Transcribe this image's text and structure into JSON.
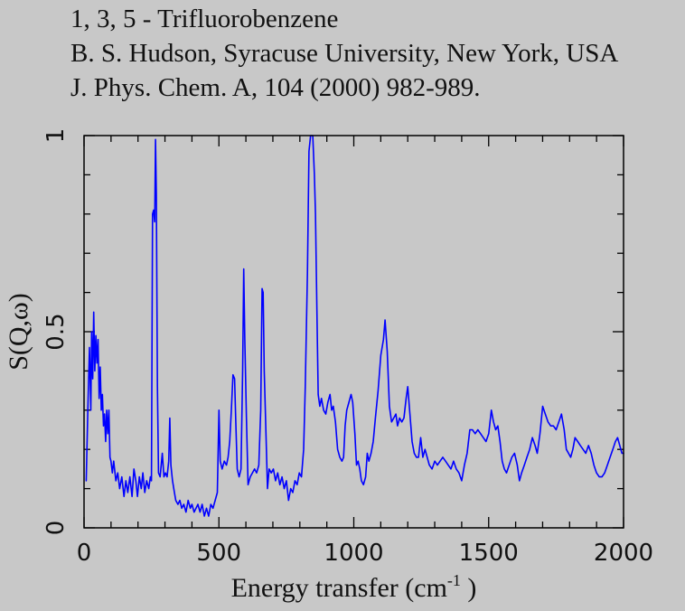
{
  "header": {
    "line1": "1, 3, 5 - Trifluorobenzene",
    "line2": "B. S. Hudson, Syracuse University, New York, USA",
    "line3": "J. Phys. Chem. A, 104 (2000) 982-989."
  },
  "colors": {
    "line": "#0000ff",
    "background": "#c8c8c8",
    "axis": "#000000"
  },
  "chart_data": {
    "type": "line",
    "title": "1, 3, 5 - Trifluorobenzene",
    "xlabel_main": "Energy transfer (cm",
    "xlabel_sup": "-1",
    "xlabel_end": " )",
    "ylabel": "S(Q,ω)",
    "xlim": [
      0,
      2000
    ],
    "ylim": [
      0,
      1
    ],
    "grid": false,
    "x_ticks": [
      0,
      500,
      1000,
      1500,
      2000
    ],
    "x_tick_labels": [
      "0",
      "500",
      "1000",
      "1500",
      "2000"
    ],
    "y_ticks": [
      0,
      0.5,
      1
    ],
    "y_tick_labels": [
      "0",
      "0.5",
      "1"
    ],
    "series": [
      {
        "color": "#0000ff",
        "points": [
          [
            8,
            0.12
          ],
          [
            15,
            0.33
          ],
          [
            20,
            0.46
          ],
          [
            25,
            0.3
          ],
          [
            28,
            0.5
          ],
          [
            32,
            0.38
          ],
          [
            36,
            0.55
          ],
          [
            40,
            0.4
          ],
          [
            44,
            0.49
          ],
          [
            48,
            0.42
          ],
          [
            52,
            0.48
          ],
          [
            56,
            0.33
          ],
          [
            60,
            0.41
          ],
          [
            64,
            0.3
          ],
          [
            68,
            0.34
          ],
          [
            72,
            0.26
          ],
          [
            76,
            0.29
          ],
          [
            80,
            0.22
          ],
          [
            84,
            0.3
          ],
          [
            88,
            0.24
          ],
          [
            92,
            0.3
          ],
          [
            96,
            0.18
          ],
          [
            100,
            0.17
          ],
          [
            105,
            0.14
          ],
          [
            110,
            0.17
          ],
          [
            118,
            0.12
          ],
          [
            125,
            0.14
          ],
          [
            132,
            0.1
          ],
          [
            140,
            0.13
          ],
          [
            148,
            0.08
          ],
          [
            155,
            0.12
          ],
          [
            162,
            0.09
          ],
          [
            170,
            0.13
          ],
          [
            178,
            0.08
          ],
          [
            185,
            0.15
          ],
          [
            192,
            0.12
          ],
          [
            198,
            0.08
          ],
          [
            205,
            0.13
          ],
          [
            212,
            0.1
          ],
          [
            218,
            0.14
          ],
          [
            225,
            0.09
          ],
          [
            232,
            0.12
          ],
          [
            240,
            0.1
          ],
          [
            246,
            0.13
          ],
          [
            250,
            0.12
          ],
          [
            254,
            0.8
          ],
          [
            258,
            0.81
          ],
          [
            262,
            0.78
          ],
          [
            265,
            0.99
          ],
          [
            268,
            0.85
          ],
          [
            272,
            0.36
          ],
          [
            276,
            0.14
          ],
          [
            282,
            0.13
          ],
          [
            290,
            0.19
          ],
          [
            296,
            0.13
          ],
          [
            302,
            0.14
          ],
          [
            308,
            0.13
          ],
          [
            314,
            0.17
          ],
          [
            318,
            0.28
          ],
          [
            322,
            0.16
          ],
          [
            328,
            0.12
          ],
          [
            335,
            0.09
          ],
          [
            340,
            0.07
          ],
          [
            348,
            0.06
          ],
          [
            355,
            0.07
          ],
          [
            362,
            0.05
          ],
          [
            370,
            0.06
          ],
          [
            378,
            0.04
          ],
          [
            386,
            0.07
          ],
          [
            394,
            0.05
          ],
          [
            400,
            0.06
          ],
          [
            408,
            0.04
          ],
          [
            415,
            0.05
          ],
          [
            422,
            0.06
          ],
          [
            430,
            0.04
          ],
          [
            438,
            0.06
          ],
          [
            446,
            0.03
          ],
          [
            454,
            0.05
          ],
          [
            462,
            0.03
          ],
          [
            470,
            0.06
          ],
          [
            478,
            0.05
          ],
          [
            486,
            0.07
          ],
          [
            494,
            0.09
          ],
          [
            500,
            0.3
          ],
          [
            505,
            0.17
          ],
          [
            512,
            0.15
          ],
          [
            520,
            0.17
          ],
          [
            528,
            0.16
          ],
          [
            534,
            0.18
          ],
          [
            540,
            0.22
          ],
          [
            546,
            0.3
          ],
          [
            552,
            0.39
          ],
          [
            558,
            0.38
          ],
          [
            562,
            0.28
          ],
          [
            568,
            0.15
          ],
          [
            575,
            0.13
          ],
          [
            582,
            0.15
          ],
          [
            588,
            0.4
          ],
          [
            592,
            0.66
          ],
          [
            596,
            0.48
          ],
          [
            602,
            0.28
          ],
          [
            608,
            0.11
          ],
          [
            616,
            0.13
          ],
          [
            624,
            0.14
          ],
          [
            632,
            0.15
          ],
          [
            640,
            0.14
          ],
          [
            648,
            0.16
          ],
          [
            655,
            0.3
          ],
          [
            660,
            0.61
          ],
          [
            664,
            0.6
          ],
          [
            668,
            0.4
          ],
          [
            674,
            0.25
          ],
          [
            680,
            0.1
          ],
          [
            686,
            0.15
          ],
          [
            694,
            0.14
          ],
          [
            702,
            0.15
          ],
          [
            710,
            0.12
          ],
          [
            718,
            0.14
          ],
          [
            726,
            0.11
          ],
          [
            734,
            0.13
          ],
          [
            742,
            0.1
          ],
          [
            750,
            0.12
          ],
          [
            758,
            0.07
          ],
          [
            766,
            0.1
          ],
          [
            774,
            0.09
          ],
          [
            782,
            0.12
          ],
          [
            790,
            0.11
          ],
          [
            798,
            0.14
          ],
          [
            806,
            0.13
          ],
          [
            814,
            0.2
          ],
          [
            820,
            0.36
          ],
          [
            828,
            0.65
          ],
          [
            834,
            0.96
          ],
          [
            840,
            1.0
          ],
          [
            848,
            1.0
          ],
          [
            854,
            0.9
          ],
          [
            858,
            0.8
          ],
          [
            864,
            0.52
          ],
          [
            868,
            0.34
          ],
          [
            874,
            0.31
          ],
          [
            880,
            0.33
          ],
          [
            888,
            0.3
          ],
          [
            896,
            0.29
          ],
          [
            904,
            0.32
          ],
          [
            912,
            0.34
          ],
          [
            918,
            0.3
          ],
          [
            924,
            0.31
          ],
          [
            932,
            0.27
          ],
          [
            940,
            0.2
          ],
          [
            948,
            0.18
          ],
          [
            956,
            0.17
          ],
          [
            962,
            0.18
          ],
          [
            968,
            0.26
          ],
          [
            974,
            0.3
          ],
          [
            982,
            0.32
          ],
          [
            990,
            0.34
          ],
          [
            996,
            0.32
          ],
          [
            1004,
            0.24
          ],
          [
            1010,
            0.16
          ],
          [
            1016,
            0.17
          ],
          [
            1022,
            0.15
          ],
          [
            1028,
            0.12
          ],
          [
            1036,
            0.11
          ],
          [
            1044,
            0.13
          ],
          [
            1050,
            0.19
          ],
          [
            1056,
            0.17
          ],
          [
            1064,
            0.19
          ],
          [
            1072,
            0.22
          ],
          [
            1080,
            0.28
          ],
          [
            1090,
            0.35
          ],
          [
            1100,
            0.44
          ],
          [
            1110,
            0.48
          ],
          [
            1116,
            0.53
          ],
          [
            1124,
            0.45
          ],
          [
            1132,
            0.31
          ],
          [
            1140,
            0.27
          ],
          [
            1148,
            0.28
          ],
          [
            1156,
            0.29
          ],
          [
            1162,
            0.26
          ],
          [
            1170,
            0.28
          ],
          [
            1178,
            0.27
          ],
          [
            1186,
            0.28
          ],
          [
            1194,
            0.33
          ],
          [
            1200,
            0.36
          ],
          [
            1208,
            0.29
          ],
          [
            1216,
            0.22
          ],
          [
            1224,
            0.19
          ],
          [
            1232,
            0.18
          ],
          [
            1240,
            0.18
          ],
          [
            1248,
            0.23
          ],
          [
            1256,
            0.18
          ],
          [
            1264,
            0.2
          ],
          [
            1272,
            0.18
          ],
          [
            1280,
            0.16
          ],
          [
            1290,
            0.15
          ],
          [
            1300,
            0.17
          ],
          [
            1310,
            0.16
          ],
          [
            1320,
            0.17
          ],
          [
            1330,
            0.18
          ],
          [
            1340,
            0.17
          ],
          [
            1350,
            0.16
          ],
          [
            1360,
            0.15
          ],
          [
            1370,
            0.17
          ],
          [
            1380,
            0.15
          ],
          [
            1390,
            0.14
          ],
          [
            1400,
            0.12
          ],
          [
            1410,
            0.16
          ],
          [
            1420,
            0.19
          ],
          [
            1430,
            0.25
          ],
          [
            1440,
            0.25
          ],
          [
            1450,
            0.24
          ],
          [
            1460,
            0.25
          ],
          [
            1470,
            0.24
          ],
          [
            1480,
            0.23
          ],
          [
            1490,
            0.22
          ],
          [
            1500,
            0.24
          ],
          [
            1510,
            0.3
          ],
          [
            1518,
            0.27
          ],
          [
            1526,
            0.25
          ],
          [
            1534,
            0.26
          ],
          [
            1542,
            0.22
          ],
          [
            1550,
            0.17
          ],
          [
            1558,
            0.15
          ],
          [
            1566,
            0.14
          ],
          [
            1576,
            0.16
          ],
          [
            1586,
            0.18
          ],
          [
            1596,
            0.19
          ],
          [
            1606,
            0.16
          ],
          [
            1614,
            0.12
          ],
          [
            1622,
            0.14
          ],
          [
            1632,
            0.16
          ],
          [
            1642,
            0.18
          ],
          [
            1652,
            0.2
          ],
          [
            1662,
            0.23
          ],
          [
            1672,
            0.21
          ],
          [
            1680,
            0.19
          ],
          [
            1690,
            0.24
          ],
          [
            1700,
            0.31
          ],
          [
            1710,
            0.29
          ],
          [
            1720,
            0.27
          ],
          [
            1730,
            0.26
          ],
          [
            1740,
            0.26
          ],
          [
            1750,
            0.25
          ],
          [
            1760,
            0.27
          ],
          [
            1770,
            0.29
          ],
          [
            1780,
            0.25
          ],
          [
            1788,
            0.2
          ],
          [
            1796,
            0.19
          ],
          [
            1804,
            0.18
          ],
          [
            1812,
            0.2
          ],
          [
            1820,
            0.23
          ],
          [
            1830,
            0.22
          ],
          [
            1840,
            0.21
          ],
          [
            1850,
            0.2
          ],
          [
            1860,
            0.19
          ],
          [
            1870,
            0.21
          ],
          [
            1880,
            0.19
          ],
          [
            1890,
            0.16
          ],
          [
            1900,
            0.14
          ],
          [
            1910,
            0.13
          ],
          [
            1920,
            0.13
          ],
          [
            1930,
            0.14
          ],
          [
            1940,
            0.16
          ],
          [
            1950,
            0.18
          ],
          [
            1960,
            0.2
          ],
          [
            1970,
            0.22
          ],
          [
            1978,
            0.23
          ],
          [
            1986,
            0.21
          ],
          [
            1994,
            0.19
          ],
          [
            2000,
            0.19
          ]
        ]
      }
    ]
  }
}
